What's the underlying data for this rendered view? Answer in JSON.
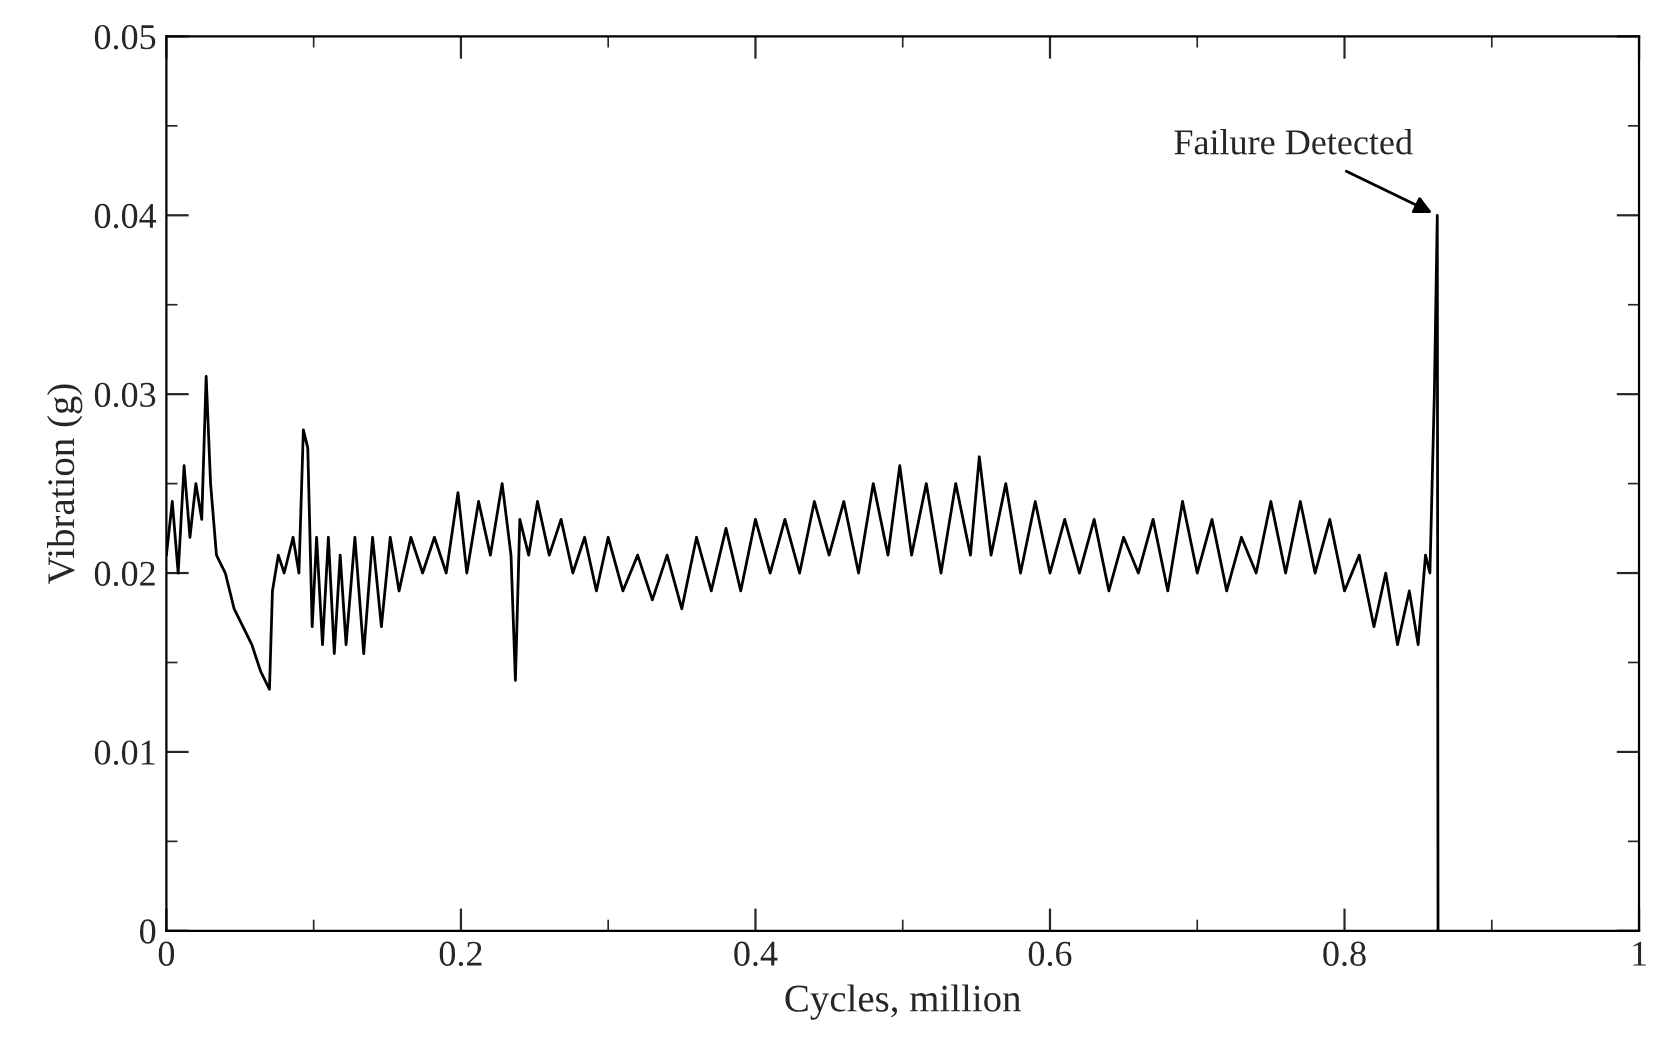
{
  "chart_data": {
    "type": "line",
    "xlabel": "Cycles, million",
    "ylabel": "Vibration (g)",
    "xlim": [
      0,
      1
    ],
    "ylim": [
      0,
      0.05
    ],
    "xticks": [
      0,
      {
        "value": 0.1,
        "label": null
      },
      0.2,
      {
        "value": 0.3,
        "label": null
      },
      0.4,
      {
        "value": 0.5,
        "label": null
      },
      0.6,
      {
        "value": 0.7,
        "label": null
      },
      0.8,
      {
        "value": 0.9,
        "label": null
      },
      1
    ],
    "yticks": [
      0,
      {
        "value": 0.005,
        "label": null
      },
      0.01,
      {
        "value": 0.015,
        "label": null
      },
      0.02,
      {
        "value": 0.025,
        "label": null
      },
      0.03,
      {
        "value": 0.035,
        "label": null
      },
      0.04,
      {
        "value": 0.045,
        "label": null
      },
      0.05
    ],
    "grid": false,
    "legend": false,
    "marker": "none",
    "line_style": "solid",
    "annotations": [
      {
        "text": "Failure Detected",
        "x": 0.863,
        "y": 0.04
      }
    ],
    "series": [
      {
        "color": "#000000",
        "x": [
          0.0,
          0.004,
          0.008,
          0.012,
          0.016,
          0.02,
          0.024,
          0.027,
          0.03,
          0.034,
          0.04,
          0.046,
          0.052,
          0.058,
          0.064,
          0.07,
          0.072,
          0.076,
          0.08,
          0.086,
          0.09,
          0.093,
          0.096,
          0.099,
          0.102,
          0.106,
          0.11,
          0.114,
          0.118,
          0.122,
          0.128,
          0.134,
          0.14,
          0.146,
          0.152,
          0.158,
          0.166,
          0.174,
          0.182,
          0.19,
          0.198,
          0.204,
          0.212,
          0.22,
          0.228,
          0.234,
          0.237,
          0.24,
          0.246,
          0.252,
          0.26,
          0.268,
          0.276,
          0.284,
          0.292,
          0.3,
          0.31,
          0.32,
          0.33,
          0.34,
          0.35,
          0.36,
          0.37,
          0.38,
          0.39,
          0.4,
          0.41,
          0.42,
          0.43,
          0.44,
          0.45,
          0.46,
          0.47,
          0.48,
          0.49,
          0.498,
          0.506,
          0.516,
          0.526,
          0.536,
          0.546,
          0.552,
          0.56,
          0.57,
          0.58,
          0.59,
          0.6,
          0.61,
          0.62,
          0.63,
          0.64,
          0.65,
          0.66,
          0.67,
          0.68,
          0.69,
          0.7,
          0.71,
          0.72,
          0.73,
          0.74,
          0.75,
          0.76,
          0.77,
          0.78,
          0.79,
          0.8,
          0.81,
          0.82,
          0.828,
          0.836,
          0.844,
          0.85,
          0.855,
          0.858,
          0.861,
          0.863,
          0.8635
        ],
        "values": [
          0.021,
          0.024,
          0.02,
          0.026,
          0.022,
          0.025,
          0.023,
          0.031,
          0.025,
          0.021,
          0.02,
          0.018,
          0.017,
          0.016,
          0.0145,
          0.0135,
          0.019,
          0.021,
          0.02,
          0.022,
          0.02,
          0.028,
          0.027,
          0.017,
          0.022,
          0.016,
          0.022,
          0.0155,
          0.021,
          0.016,
          0.022,
          0.0155,
          0.022,
          0.017,
          0.022,
          0.019,
          0.022,
          0.02,
          0.022,
          0.02,
          0.0245,
          0.02,
          0.024,
          0.021,
          0.025,
          0.021,
          0.014,
          0.023,
          0.021,
          0.024,
          0.021,
          0.023,
          0.02,
          0.022,
          0.019,
          0.022,
          0.019,
          0.021,
          0.0185,
          0.021,
          0.018,
          0.022,
          0.019,
          0.0225,
          0.019,
          0.023,
          0.02,
          0.023,
          0.02,
          0.024,
          0.021,
          0.024,
          0.02,
          0.025,
          0.021,
          0.026,
          0.021,
          0.025,
          0.02,
          0.025,
          0.021,
          0.0265,
          0.021,
          0.025,
          0.02,
          0.024,
          0.02,
          0.023,
          0.02,
          0.023,
          0.019,
          0.022,
          0.02,
          0.023,
          0.019,
          0.024,
          0.02,
          0.023,
          0.019,
          0.022,
          0.02,
          0.024,
          0.02,
          0.024,
          0.02,
          0.023,
          0.019,
          0.021,
          0.017,
          0.02,
          0.016,
          0.019,
          0.016,
          0.021,
          0.02,
          0.03,
          0.04,
          0
        ]
      }
    ]
  }
}
